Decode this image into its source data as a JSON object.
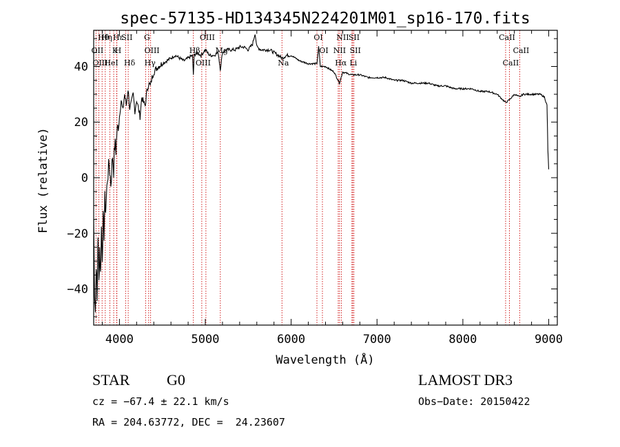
{
  "chart_data": {
    "type": "line",
    "title": "spec-57135-HD134345N224201M01_sp16-170.fits",
    "xlabel": "Wavelength (Å)",
    "ylabel": "Flux (relative)",
    "xlim": [
      3700,
      9100
    ],
    "ylim": [
      -53,
      53
    ],
    "x_ticks": [
      4000,
      5000,
      6000,
      7000,
      8000,
      9000
    ],
    "y_ticks": [
      -40,
      -20,
      0,
      20,
      40
    ],
    "x_tick_labels": [
      "4000",
      "5000",
      "6000",
      "7000",
      "8000",
      "9000"
    ],
    "y_tick_labels": [
      "−40",
      "−20",
      "0",
      "20",
      "40"
    ],
    "grid": false,
    "series": [
      {
        "name": "spectrum",
        "x": [
          3700,
          3710,
          3720,
          3730,
          3740,
          3750,
          3760,
          3770,
          3780,
          3790,
          3800,
          3810,
          3820,
          3830,
          3840,
          3860,
          3880,
          3900,
          3920,
          3933,
          3945,
          3960,
          3968,
          3980,
          4000,
          4020,
          4040,
          4060,
          4080,
          4100,
          4120,
          4140,
          4160,
          4180,
          4200,
          4220,
          4240,
          4260,
          4280,
          4300,
          4320,
          4340,
          4360,
          4380,
          4400,
          4450,
          4500,
          4550,
          4600,
          4650,
          4700,
          4750,
          4800,
          4850,
          4861,
          4870,
          4900,
          4950,
          5000,
          5050,
          5100,
          5150,
          5175,
          5200,
          5250,
          5300,
          5350,
          5400,
          5450,
          5500,
          5550,
          5580,
          5600,
          5650,
          5700,
          5750,
          5800,
          5850,
          5893,
          5950,
          6000,
          6100,
          6200,
          6300,
          6320,
          6340,
          6400,
          6500,
          6563,
          6600,
          6700,
          6800,
          6900,
          7000,
          7100,
          7200,
          7300,
          7400,
          7500,
          7600,
          7700,
          7800,
          7900,
          8000,
          8100,
          8200,
          8300,
          8400,
          8498,
          8542,
          8600,
          8662,
          8700,
          8800,
          8850,
          8900,
          8950,
          8980,
          8990,
          9000
        ],
        "values": [
          -15,
          -40,
          -48,
          -30,
          -45,
          -20,
          -38,
          -25,
          -35,
          -18,
          -28,
          -15,
          -20,
          -8,
          -12,
          0,
          5,
          -2,
          8,
          3,
          12,
          10,
          15,
          18,
          22,
          28,
          24,
          30,
          26,
          32,
          25,
          27,
          30,
          24,
          28,
          25,
          22,
          29,
          27,
          26,
          31,
          34,
          33,
          36,
          38,
          40,
          41,
          42,
          43,
          44,
          43,
          42,
          43,
          44,
          37,
          44,
          45,
          44,
          46,
          44,
          44,
          45,
          39,
          45,
          46,
          46,
          46,
          47,
          47,
          46,
          48,
          52,
          47,
          46,
          46,
          46,
          45,
          44,
          43,
          44,
          44,
          42,
          41,
          41,
          47,
          40,
          40,
          38,
          34,
          38,
          37,
          37,
          36,
          36,
          36,
          35,
          35,
          34,
          34,
          34,
          33,
          33,
          32,
          32,
          32,
          31,
          31,
          30,
          27,
          28,
          30,
          29,
          30,
          30,
          30,
          30,
          29,
          26,
          10,
          3
        ]
      }
    ],
    "annotations": {
      "lines": [
        {
          "label": "Hθ",
          "x": 3798
        },
        {
          "label": "OII",
          "x": 3727
        },
        {
          "label": "OIII",
          "x": 3760
        },
        {
          "label": "Hη",
          "x": 3835
        },
        {
          "label": "K",
          "x": 3933
        },
        {
          "label": "HeI",
          "x": 3889
        },
        {
          "label": "Hε",
          "x": 3970
        },
        {
          "label": "H",
          "x": 3968
        },
        {
          "label": "Hδ",
          "x": 4102
        },
        {
          "label": "SII",
          "x": 4072
        },
        {
          "label": "OIII",
          "x": 4363
        },
        {
          "label": "Hγ",
          "x": 4340
        },
        {
          "label": "G",
          "x": 4305
        },
        {
          "label": "Hβ",
          "x": 4861
        },
        {
          "label": "OIII",
          "x": 4959
        },
        {
          "label": "OIII",
          "x": 5007
        },
        {
          "label": "Mg",
          "x": 5175
        },
        {
          "label": "Na",
          "x": 5893
        },
        {
          "label": "OI",
          "x": 6300
        },
        {
          "label": "OI",
          "x": 6364
        },
        {
          "label": "Hα",
          "x": 6563
        },
        {
          "label": "SII",
          "x": 6717
        },
        {
          "label": "NII",
          "x": 6548
        },
        {
          "label": "Li",
          "x": 6708
        },
        {
          "label": "NII",
          "x": 6584
        },
        {
          "label": "SII",
          "x": 6731
        },
        {
          "label": "CaII",
          "x": 8542
        },
        {
          "label": "CaII",
          "x": 8498
        },
        {
          "label": "CaII",
          "x": 8662
        }
      ]
    }
  },
  "info": {
    "object_class": "STAR",
    "subclass": "G0",
    "survey": "LAMOST DR3",
    "cz": "cz = −67.4 ± 22.1 km/s",
    "obs_date": "Obs−Date: 20150422",
    "coords": "RA = 204.63772, DEC =  24.23607"
  },
  "colors": {
    "spectrum": "#000000",
    "line_markers": "#cc0000",
    "axes": "#000000"
  }
}
